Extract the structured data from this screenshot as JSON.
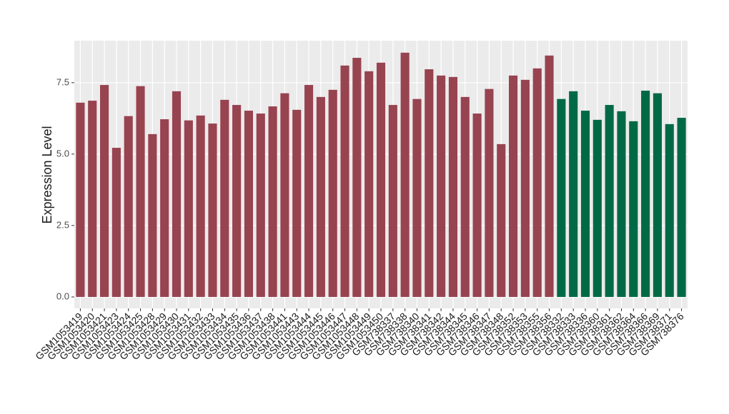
{
  "chart_data": {
    "type": "bar",
    "y_label": "Expression Level",
    "categories": [
      "GSM1053419",
      "GSM1053420",
      "GSM1053421",
      "GSM1053423",
      "GSM1053424",
      "GSM1053425",
      "GSM1053428",
      "GSM1053429",
      "GSM1053430",
      "GSM1053431",
      "GSM1053432",
      "GSM1053433",
      "GSM1053434",
      "GSM1053435",
      "GSM1053436",
      "GSM1053437",
      "GSM1053438",
      "GSM1053441",
      "GSM1053443",
      "GSM1053444",
      "GSM1053445",
      "GSM1053446",
      "GSM1053447",
      "GSM1053448",
      "GSM1053449",
      "GSM1053450",
      "GSM738337",
      "GSM738338",
      "GSM738340",
      "GSM738341",
      "GSM738342",
      "GSM738344",
      "GSM738345",
      "GSM738346",
      "GSM738347",
      "GSM738348",
      "GSM738352",
      "GSM738353",
      "GSM738355",
      "GSM738356",
      "GSM738332",
      "GSM738333",
      "GSM738336",
      "GSM738360",
      "GSM738361",
      "GSM738362",
      "GSM738364",
      "GSM738366",
      "GSM738369",
      "GSM738371",
      "GSM738376"
    ],
    "values": [
      6.8,
      6.87,
      7.42,
      5.22,
      6.33,
      7.38,
      5.7,
      6.22,
      7.2,
      6.18,
      6.35,
      6.07,
      6.9,
      6.72,
      6.52,
      6.42,
      6.67,
      7.13,
      6.55,
      7.42,
      7.0,
      7.25,
      8.1,
      8.37,
      7.9,
      8.2,
      6.72,
      8.55,
      6.93,
      7.97,
      7.75,
      7.7,
      7.0,
      6.42,
      7.28,
      5.35,
      7.75,
      7.6,
      8.0,
      8.45,
      6.93,
      7.2,
      6.52,
      6.2,
      6.72,
      6.5,
      6.15,
      7.22,
      7.13,
      6.05,
      6.27
    ],
    "colors": [
      "#984350",
      "#984350",
      "#984350",
      "#984350",
      "#984350",
      "#984350",
      "#984350",
      "#984350",
      "#984350",
      "#984350",
      "#984350",
      "#984350",
      "#984350",
      "#984350",
      "#984350",
      "#984350",
      "#984350",
      "#984350",
      "#984350",
      "#984350",
      "#984350",
      "#984350",
      "#984350",
      "#984350",
      "#984350",
      "#984350",
      "#984350",
      "#984350",
      "#984350",
      "#984350",
      "#984350",
      "#984350",
      "#984350",
      "#984350",
      "#984350",
      "#984350",
      "#984350",
      "#984350",
      "#984350",
      "#984350",
      "#006a46",
      "#006a46",
      "#006a46",
      "#006a46",
      "#006a46",
      "#006a46",
      "#006a46",
      "#006a46",
      "#006a46",
      "#006a46",
      "#006a46"
    ],
    "ylim": [
      -0.4,
      8.97
    ],
    "yticks": [
      {
        "value": 0,
        "label": "0.0"
      },
      {
        "value": 2.5,
        "label": "2.5"
      },
      {
        "value": 5,
        "label": "5.0"
      },
      {
        "value": 7.5,
        "label": "7.5"
      }
    ],
    "grid": true
  }
}
